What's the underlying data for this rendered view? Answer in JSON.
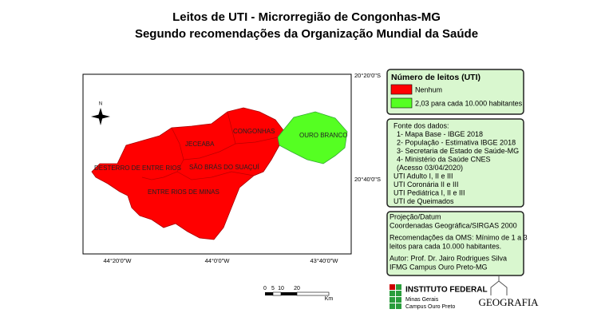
{
  "header": {
    "title": "Leitos de UTI - Microrregião de Congonhas-MG",
    "subtitle": "Segundo recomendações da Organização Mundial da Saúde"
  },
  "map": {
    "municipalities": [
      {
        "label": "CONGONHAS"
      },
      {
        "label": "OURO BRANCO"
      },
      {
        "label": "JECEABA"
      },
      {
        "label": "DESTERRO DE ENTRE RIOS"
      },
      {
        "label": "SÃO BRÁS DO SUAÇUÍ"
      },
      {
        "label": "ENTRE RIOS DE MINAS"
      }
    ],
    "latitudes": [
      "20°20'0\"S",
      "20°40'0\"S"
    ],
    "longitudes": [
      "44°20'0\"W",
      "44°0'0\"W",
      "43°40'0\"W"
    ]
  },
  "legend": {
    "title": "Número de leitos (UTI)",
    "items": [
      {
        "label": "Nenhum",
        "color": "#ff0000"
      },
      {
        "label": "2,03 para cada 10.000 habitantes",
        "color": "#55ff22"
      }
    ]
  },
  "sources": {
    "lines": [
      "Fonte dos dados:",
      "1- Mapa Base - IBGE 2018",
      "2- População - Estimativa IBGE 2018",
      "3- Secretaria de Estado de Saúde-MG",
      "4- Ministério da Saúde CNES",
      "(Acesso 03/04/2020)",
      "UTI Adulto I, II e III",
      "UTI Coronária II e III",
      "UTI Pediátrica I, II e III",
      "UTI de Queimados"
    ]
  },
  "projection": {
    "lines": [
      "Projeção/Datum",
      "Coordenadas Geográfica/SIRGAS 2000",
      "Recomendações da OMS: Mínimo de 1 a 3",
      "leitos para cada 10.000 habitantes.",
      "Autor: Prof. Dr. Jairo Rodrigues Silva",
      "IFMG Campus Ouro Preto-MG"
    ]
  },
  "scale_bar": {
    "ticks": [
      0,
      5,
      10,
      20
    ],
    "unit": "Km"
  },
  "logos": {
    "institute": [
      "INSTITUTO FEDERAL",
      "Minas Gerais",
      "Campus Ouro Preto"
    ],
    "geografia": "GEOGRAFIA"
  }
}
